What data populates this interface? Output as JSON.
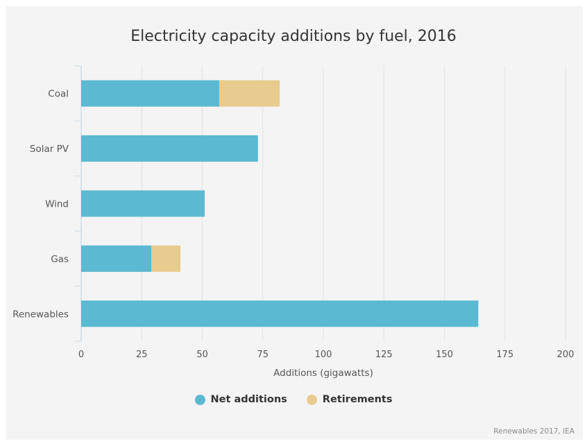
{
  "title": "Electricity capacity additions by fuel, 2016",
  "source": "Renewables 2017, IEA",
  "colors": {
    "net": "#5bb9d1",
    "ret": "#e8cb8e",
    "grid": "#e2e2e2",
    "axis": "#cddce6",
    "text": "#555555"
  },
  "chart_data": {
    "type": "bar",
    "orientation": "horizontal",
    "stacked": true,
    "title": "Electricity capacity additions by fuel, 2016",
    "xlabel": "Additions (gigawatts)",
    "ylabel": "",
    "categories": [
      "Coal",
      "Solar PV",
      "Wind",
      "Gas",
      "Renewables"
    ],
    "series": [
      {
        "name": "Net additions",
        "values": [
          57,
          73,
          51,
          29,
          164
        ],
        "color": "#5bb9d1"
      },
      {
        "name": "Retirements",
        "values": [
          25,
          0,
          0,
          12,
          0
        ],
        "color": "#e8cb8e"
      }
    ],
    "xlim": [
      0,
      200
    ],
    "xticks": [
      0,
      25,
      50,
      75,
      100,
      125,
      150,
      175,
      200
    ],
    "grid": true,
    "legend": "bottom-center"
  }
}
